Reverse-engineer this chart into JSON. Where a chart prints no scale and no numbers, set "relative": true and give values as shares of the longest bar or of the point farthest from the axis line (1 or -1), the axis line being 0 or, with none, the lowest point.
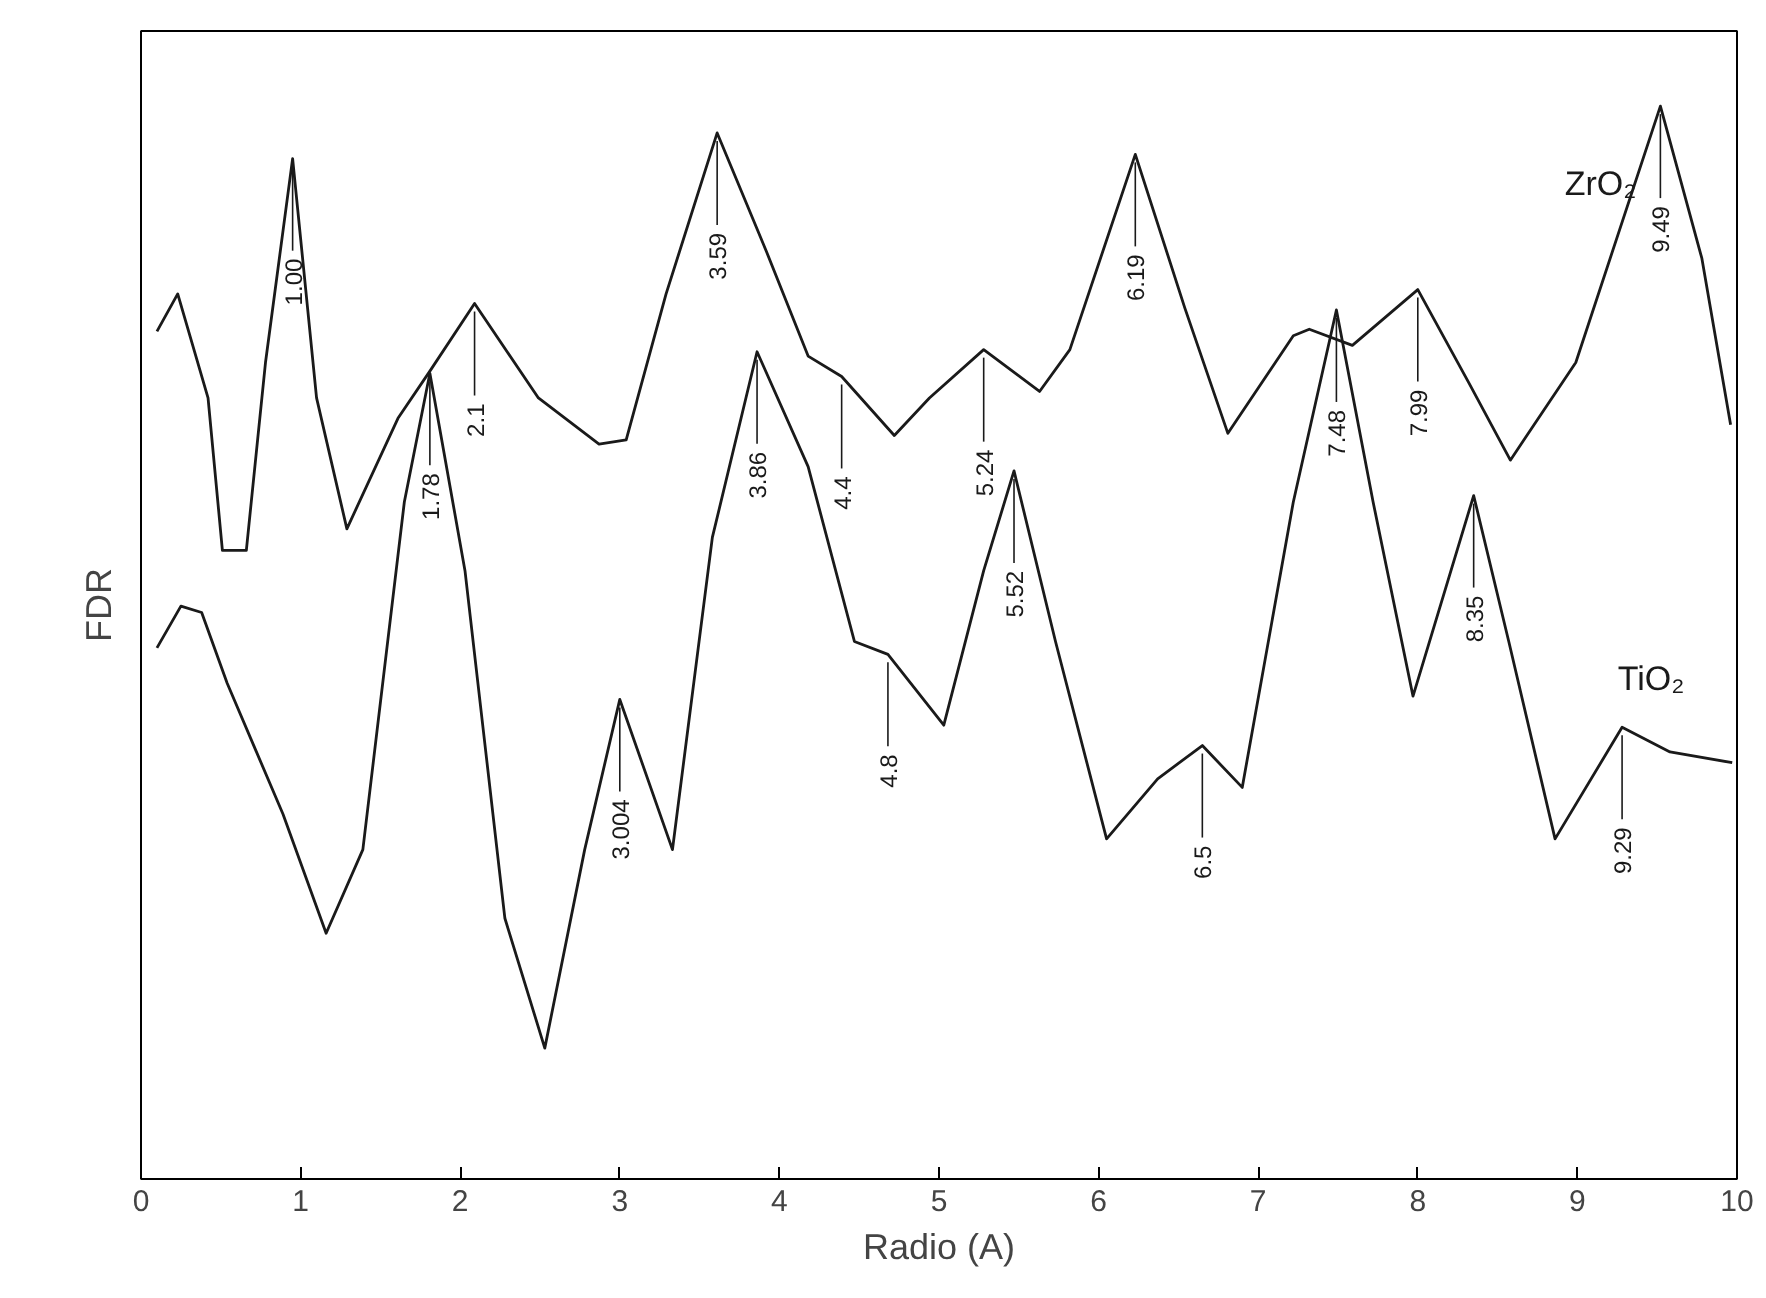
{
  "chart_data": {
    "type": "line",
    "relative": true,
    "xlabel": "Radio (A)",
    "ylabel": "FDR",
    "xlim": [
      0,
      10
    ],
    "xticks": [
      0,
      1,
      2,
      3,
      4,
      5,
      6,
      7,
      8,
      9,
      10
    ],
    "grid": false,
    "marker": "none",
    "line_style": "solid",
    "series": [
      {
        "name": "ZrO₂",
        "color": "#1a1a1a",
        "x": [
          0.1,
          0.23,
          0.42,
          0.51,
          0.66,
          0.78,
          0.95,
          1.1,
          1.29,
          1.61,
          1.81,
          2.09,
          2.49,
          2.87,
          3.04,
          3.29,
          3.61,
          3.92,
          4.18,
          4.39,
          4.72,
          4.94,
          5.28,
          5.63,
          5.82,
          6.23,
          6.54,
          6.81,
          7.22,
          7.32,
          7.59,
          8.0,
          8.32,
          8.58,
          8.99,
          9.52,
          9.78,
          9.96
        ],
        "values": [
          0.79,
          0.825,
          0.728,
          0.586,
          0.586,
          0.761,
          0.951,
          0.728,
          0.606,
          0.709,
          0.753,
          0.816,
          0.728,
          0.685,
          0.689,
          0.825,
          0.975,
          0.864,
          0.767,
          0.748,
          0.693,
          0.728,
          0.773,
          0.734,
          0.773,
          0.955,
          0.812,
          0.695,
          0.786,
          0.792,
          0.777,
          0.829,
          0.742,
          0.67,
          0.761,
          1.0,
          0.858,
          0.703
        ]
      },
      {
        "name": "TiO₂",
        "color": "#1a1a1a",
        "x": [
          0.1,
          0.25,
          0.38,
          0.54,
          0.89,
          1.16,
          1.39,
          1.65,
          1.81,
          2.03,
          2.28,
          2.53,
          2.78,
          3.0,
          3.33,
          3.58,
          3.86,
          4.18,
          4.47,
          4.68,
          5.03,
          5.28,
          5.47,
          5.73,
          6.05,
          6.37,
          6.65,
          6.9,
          7.22,
          7.49,
          7.72,
          7.97,
          8.35,
          8.57,
          8.86,
          9.28,
          9.58,
          9.97
        ],
        "values": [
          0.495,
          0.534,
          0.528,
          0.462,
          0.34,
          0.229,
          0.307,
          0.631,
          0.751,
          0.567,
          0.243,
          0.122,
          0.307,
          0.447,
          0.307,
          0.598,
          0.771,
          0.664,
          0.501,
          0.489,
          0.423,
          0.567,
          0.66,
          0.501,
          0.317,
          0.373,
          0.404,
          0.365,
          0.631,
          0.81,
          0.631,
          0.45,
          0.637,
          0.501,
          0.317,
          0.421,
          0.398,
          0.388
        ]
      }
    ],
    "annotations": [
      {
        "text": "1.00",
        "x": 0.95,
        "y": 0.951
      },
      {
        "text": "2.1",
        "x": 2.09,
        "y": 0.816
      },
      {
        "text": "3.59",
        "x": 3.61,
        "y": 0.975
      },
      {
        "text": "4.4",
        "x": 4.39,
        "y": 0.748
      },
      {
        "text": "5.24",
        "x": 5.28,
        "y": 0.773
      },
      {
        "text": "6.19",
        "x": 6.23,
        "y": 0.955
      },
      {
        "text": "7.99",
        "x": 8.0,
        "y": 0.829
      },
      {
        "text": "9.49",
        "x": 9.52,
        "y": 1.0
      },
      {
        "text": "1.78",
        "x": 1.81,
        "y": 0.751
      },
      {
        "text": "3.004",
        "x": 3.0,
        "y": 0.447
      },
      {
        "text": "3.86",
        "x": 3.86,
        "y": 0.771
      },
      {
        "text": "4.8",
        "x": 4.68,
        "y": 0.489
      },
      {
        "text": "5.52",
        "x": 5.47,
        "y": 0.66
      },
      {
        "text": "6.5",
        "x": 6.65,
        "y": 0.404
      },
      {
        "text": "7.48",
        "x": 7.49,
        "y": 0.81
      },
      {
        "text": "8.35",
        "x": 8.35,
        "y": 0.637
      },
      {
        "text": "9.29",
        "x": 9.28,
        "y": 0.421
      }
    ]
  }
}
